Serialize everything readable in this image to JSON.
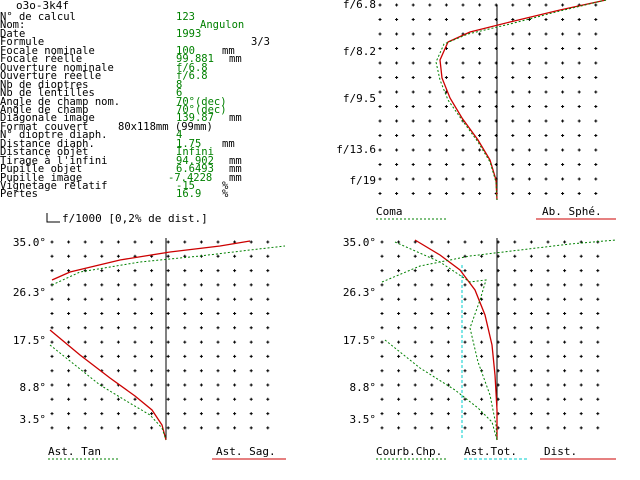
{
  "window_title": "o3o-3k4f",
  "info_panel": {
    "rows": [
      {
        "label": "N° de calcul",
        "value": "123",
        "unit": ""
      },
      {
        "label": "Nom:",
        "value": "Angulon",
        "unit": "",
        "value_offset": 24
      },
      {
        "label": "Date",
        "value": "1993",
        "unit": ""
      },
      {
        "label": "Formule",
        "value": "",
        "unit": "",
        "extra": "3/3"
      },
      {
        "label": "Focale nominale",
        "value": "100",
        "unit": "mm"
      },
      {
        "label": "Focale réelle",
        "value": "99.881",
        "unit": "mm",
        "unit_tight": true
      },
      {
        "label": "Ouverture nominale",
        "value": "f/6.8",
        "unit": ""
      },
      {
        "label": "Ouverture réelle",
        "value": "f/6.8",
        "unit": ""
      },
      {
        "label": "Nb de dioptres",
        "value": "8",
        "unit": ""
      },
      {
        "label": "Nb de lentilles",
        "value": "6",
        "unit": ""
      },
      {
        "label": "Angle de champ nom.",
        "value": "70°(dec)",
        "unit": ""
      },
      {
        "label": "Angle de champ",
        "value": "70°(dec)",
        "unit": ""
      },
      {
        "label": "Diagonale image",
        "value": "139.87",
        "unit": "mm",
        "unit_tight": true
      },
      {
        "label": "Format couvert",
        "value": "",
        "unit": "",
        "format": "80x118mm (99mm)"
      },
      {
        "label": "N° dioptre diaph.",
        "value": "4",
        "unit": ""
      },
      {
        "label": "Distance diaph.",
        "value": "1.75",
        "unit": "mm"
      },
      {
        "label": "Distance objet",
        "value": "Infini",
        "unit": ""
      },
      {
        "label": "Tirage à l'infini",
        "value": "94.902",
        "unit": "mm",
        "unit_tight": true
      },
      {
        "label": "Pupille objet",
        "value": "6.6493",
        "unit": "mm",
        "unit_tight": true
      },
      {
        "label": "Pupille image",
        "value": "-7.4228",
        "unit": "mm",
        "value_offset": -8,
        "unit_tight": true
      },
      {
        "label": "Vignetage relatif",
        "value": "-15",
        "unit": "%"
      },
      {
        "label": "Pertes",
        "value": "16.9",
        "unit": "%"
      }
    ]
  },
  "plots": {
    "spherical": {
      "y_ticks": [
        "f/6.8",
        "f/8.2",
        "f/9.5",
        "f/13.6",
        "f/19"
      ],
      "legend_left": "Coma",
      "legend_right": "Ab. Sphé."
    },
    "distortion_note": "f/1000 [0,2% de dist.]",
    "astig_left": {
      "y_ticks": [
        "35.0°",
        "26.3°",
        "17.5°",
        "8.8°",
        "3.5°"
      ],
      "legend_left": "Ast. Tan",
      "legend_right": "Ast. Sag."
    },
    "astig_right": {
      "y_ticks": [
        "35.0°",
        "26.3°",
        "17.5°",
        "8.8°",
        "3.5°"
      ],
      "legend_left": "Courb.Chp.",
      "legend_mid": "Ast.Tot.",
      "legend_right": "Dist."
    }
  },
  "colors": {
    "value_green": "#008000",
    "curve_red": "#cc0000",
    "curve_green": "#008000",
    "curve_cyan": "#00cccc"
  }
}
